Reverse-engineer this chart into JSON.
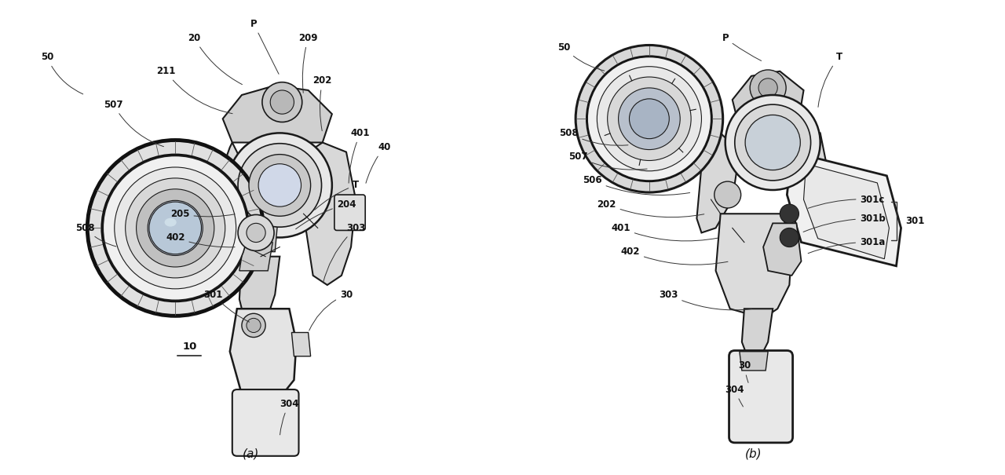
{
  "bg_color": "#ffffff",
  "panel_a_label": "(a)",
  "panel_b_label": "(b)",
  "figsize": [
    12.8,
    6.05
  ],
  "dpi": 100,
  "text_color": "#111111",
  "edge_color": "#1a1a1a",
  "label_fontsize": 8.5,
  "panel_fontsize": 11,
  "underline_10_label": "10"
}
